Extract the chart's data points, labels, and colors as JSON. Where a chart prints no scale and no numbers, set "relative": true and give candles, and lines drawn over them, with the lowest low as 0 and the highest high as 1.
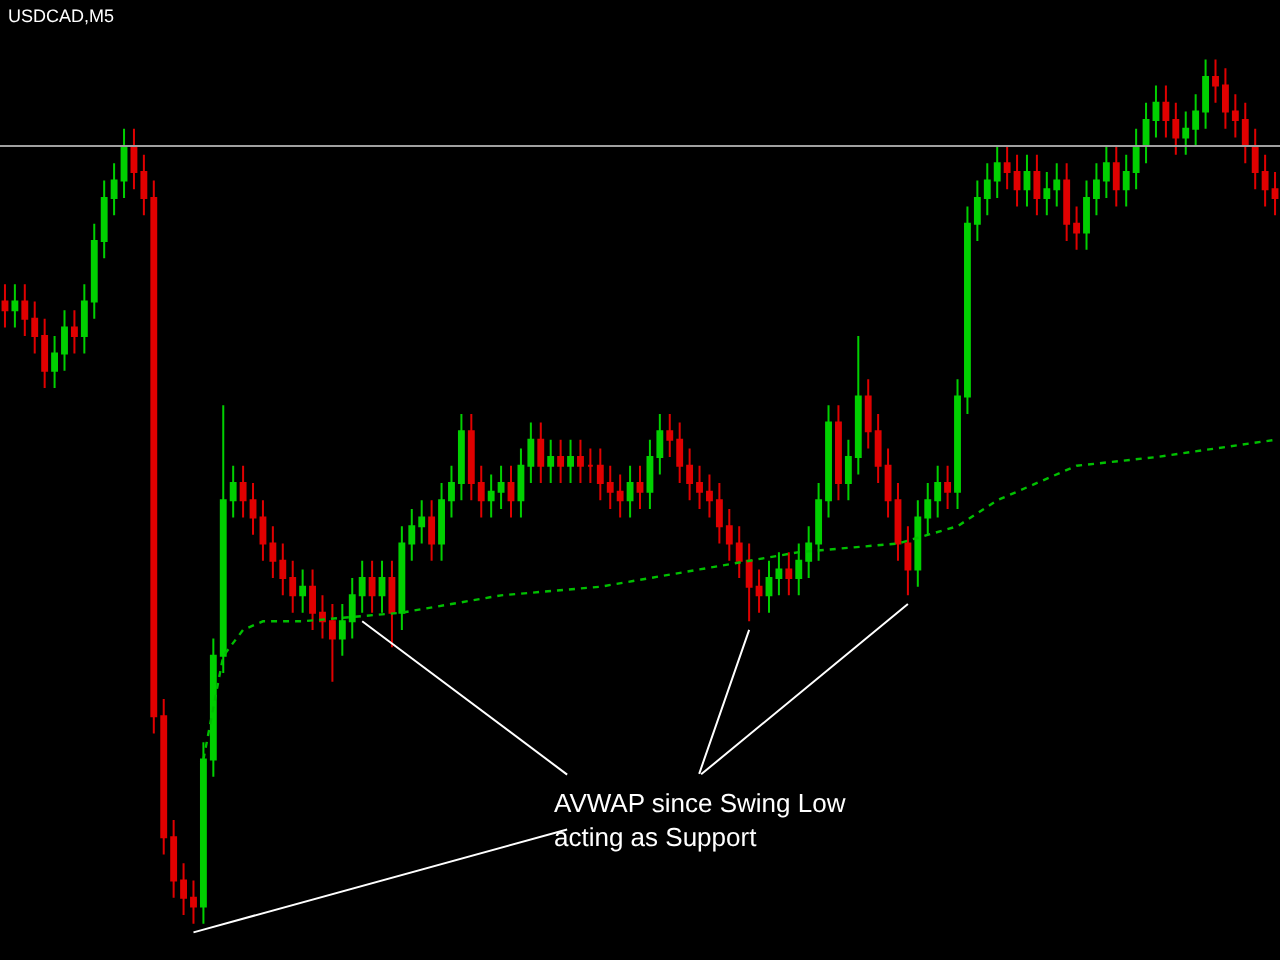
{
  "chart_data": {
    "type": "candlestick",
    "title": "USDCAD,M5",
    "relative": true,
    "categories": [
      null,
      null,
      null,
      null,
      null,
      null,
      null,
      null,
      null,
      null,
      null,
      null,
      null,
      null,
      null,
      null,
      null,
      null,
      null,
      null,
      null,
      null,
      null,
      null,
      null,
      null,
      null,
      null,
      null,
      null,
      null,
      null,
      null,
      null,
      null,
      null,
      null,
      null,
      null,
      null,
      null,
      null,
      null,
      null,
      null,
      null,
      null,
      null,
      null,
      null,
      null,
      null,
      null,
      null,
      null,
      null,
      null,
      null,
      null,
      null,
      null,
      null,
      null,
      null,
      null,
      null,
      null,
      null,
      null,
      null,
      null,
      null,
      null,
      null,
      null,
      null,
      null,
      null,
      null,
      null,
      null,
      null,
      null,
      null,
      null,
      null,
      null,
      null,
      null,
      null,
      null,
      null,
      null,
      null,
      null,
      null,
      null,
      null,
      null,
      null,
      null,
      null,
      null,
      null,
      null,
      null,
      null,
      null,
      null,
      null,
      null,
      null,
      null,
      null,
      null,
      null,
      null,
      null,
      null,
      null,
      null,
      null,
      null,
      null,
      null,
      null,
      null,
      null,
      null
    ],
    "ohlc": [
      [
        0.72,
        0.74,
        0.69,
        0.71
      ],
      [
        0.71,
        0.74,
        0.69,
        0.72
      ],
      [
        0.72,
        0.74,
        0.68,
        0.7
      ],
      [
        0.7,
        0.72,
        0.66,
        0.68
      ],
      [
        0.68,
        0.7,
        0.62,
        0.64
      ],
      [
        0.64,
        0.68,
        0.62,
        0.66
      ],
      [
        0.66,
        0.71,
        0.64,
        0.69
      ],
      [
        0.69,
        0.71,
        0.66,
        0.68
      ],
      [
        0.68,
        0.74,
        0.66,
        0.72
      ],
      [
        0.72,
        0.81,
        0.7,
        0.79
      ],
      [
        0.79,
        0.86,
        0.77,
        0.84
      ],
      [
        0.84,
        0.88,
        0.82,
        0.86
      ],
      [
        0.86,
        0.92,
        0.84,
        0.9
      ],
      [
        0.9,
        0.92,
        0.85,
        0.87
      ],
      [
        0.87,
        0.89,
        0.82,
        0.84
      ],
      [
        0.84,
        0.86,
        0.22,
        0.24
      ],
      [
        0.24,
        0.26,
        0.08,
        0.1
      ],
      [
        0.1,
        0.12,
        0.03,
        0.05
      ],
      [
        0.05,
        0.07,
        0.01,
        0.03
      ],
      [
        0.03,
        0.05,
        0.0,
        0.02
      ],
      [
        0.02,
        0.21,
        0.0,
        0.19
      ],
      [
        0.19,
        0.33,
        0.17,
        0.31
      ],
      [
        0.31,
        0.6,
        0.29,
        0.49
      ],
      [
        0.49,
        0.53,
        0.47,
        0.51
      ],
      [
        0.51,
        0.53,
        0.47,
        0.49
      ],
      [
        0.49,
        0.51,
        0.45,
        0.47
      ],
      [
        0.47,
        0.49,
        0.42,
        0.44
      ],
      [
        0.44,
        0.46,
        0.4,
        0.42
      ],
      [
        0.42,
        0.44,
        0.38,
        0.4
      ],
      [
        0.4,
        0.42,
        0.36,
        0.38
      ],
      [
        0.38,
        0.41,
        0.36,
        0.39
      ],
      [
        0.39,
        0.41,
        0.34,
        0.36
      ],
      [
        0.36,
        0.38,
        0.33,
        0.35
      ],
      [
        0.35,
        0.37,
        0.28,
        0.33
      ],
      [
        0.33,
        0.37,
        0.31,
        0.35
      ],
      [
        0.35,
        0.4,
        0.33,
        0.38
      ],
      [
        0.38,
        0.42,
        0.36,
        0.4
      ],
      [
        0.4,
        0.42,
        0.36,
        0.38
      ],
      [
        0.38,
        0.42,
        0.36,
        0.4
      ],
      [
        0.4,
        0.42,
        0.32,
        0.36
      ],
      [
        0.36,
        0.46,
        0.34,
        0.44
      ],
      [
        0.44,
        0.48,
        0.42,
        0.46
      ],
      [
        0.46,
        0.49,
        0.44,
        0.47
      ],
      [
        0.47,
        0.49,
        0.42,
        0.44
      ],
      [
        0.44,
        0.51,
        0.42,
        0.49
      ],
      [
        0.49,
        0.53,
        0.47,
        0.51
      ],
      [
        0.51,
        0.59,
        0.49,
        0.57
      ],
      [
        0.57,
        0.59,
        0.49,
        0.51
      ],
      [
        0.51,
        0.53,
        0.47,
        0.49
      ],
      [
        0.49,
        0.52,
        0.47,
        0.5
      ],
      [
        0.5,
        0.53,
        0.48,
        0.51
      ],
      [
        0.51,
        0.53,
        0.47,
        0.49
      ],
      [
        0.49,
        0.55,
        0.47,
        0.53
      ],
      [
        0.53,
        0.58,
        0.51,
        0.56
      ],
      [
        0.56,
        0.58,
        0.51,
        0.53
      ],
      [
        0.53,
        0.56,
        0.51,
        0.54
      ],
      [
        0.54,
        0.56,
        0.51,
        0.53
      ],
      [
        0.53,
        0.56,
        0.51,
        0.54
      ],
      [
        0.54,
        0.56,
        0.51,
        0.53
      ],
      [
        0.53,
        0.55,
        0.51,
        0.53
      ],
      [
        0.53,
        0.55,
        0.49,
        0.51
      ],
      [
        0.51,
        0.53,
        0.48,
        0.5
      ],
      [
        0.5,
        0.52,
        0.47,
        0.49
      ],
      [
        0.49,
        0.53,
        0.47,
        0.51
      ],
      [
        0.51,
        0.53,
        0.48,
        0.5
      ],
      [
        0.5,
        0.56,
        0.48,
        0.54
      ],
      [
        0.54,
        0.59,
        0.52,
        0.57
      ],
      [
        0.57,
        0.59,
        0.54,
        0.56
      ],
      [
        0.56,
        0.58,
        0.51,
        0.53
      ],
      [
        0.53,
        0.55,
        0.49,
        0.51
      ],
      [
        0.51,
        0.53,
        0.48,
        0.5
      ],
      [
        0.5,
        0.52,
        0.47,
        0.49
      ],
      [
        0.49,
        0.51,
        0.44,
        0.46
      ],
      [
        0.46,
        0.48,
        0.42,
        0.44
      ],
      [
        0.44,
        0.46,
        0.4,
        0.42
      ],
      [
        0.42,
        0.44,
        0.35,
        0.39
      ],
      [
        0.39,
        0.41,
        0.36,
        0.38
      ],
      [
        0.38,
        0.42,
        0.36,
        0.4
      ],
      [
        0.4,
        0.43,
        0.38,
        0.41
      ],
      [
        0.41,
        0.43,
        0.38,
        0.4
      ],
      [
        0.4,
        0.44,
        0.38,
        0.42
      ],
      [
        0.42,
        0.46,
        0.4,
        0.44
      ],
      [
        0.44,
        0.51,
        0.42,
        0.49
      ],
      [
        0.49,
        0.6,
        0.47,
        0.58
      ],
      [
        0.58,
        0.6,
        0.49,
        0.51
      ],
      [
        0.51,
        0.56,
        0.49,
        0.54
      ],
      [
        0.54,
        0.68,
        0.52,
        0.61
      ],
      [
        0.61,
        0.63,
        0.55,
        0.57
      ],
      [
        0.57,
        0.59,
        0.51,
        0.53
      ],
      [
        0.53,
        0.55,
        0.47,
        0.49
      ],
      [
        0.49,
        0.51,
        0.42,
        0.44
      ],
      [
        0.44,
        0.46,
        0.38,
        0.41
      ],
      [
        0.41,
        0.49,
        0.39,
        0.47
      ],
      [
        0.47,
        0.51,
        0.45,
        0.49
      ],
      [
        0.49,
        0.53,
        0.47,
        0.51
      ],
      [
        0.51,
        0.53,
        0.48,
        0.5
      ],
      [
        0.5,
        0.63,
        0.48,
        0.61
      ],
      [
        0.61,
        0.83,
        0.59,
        0.81
      ],
      [
        0.81,
        0.86,
        0.79,
        0.84
      ],
      [
        0.84,
        0.88,
        0.82,
        0.86
      ],
      [
        0.86,
        0.9,
        0.84,
        0.88
      ],
      [
        0.88,
        0.9,
        0.85,
        0.87
      ],
      [
        0.87,
        0.89,
        0.83,
        0.85
      ],
      [
        0.85,
        0.89,
        0.83,
        0.87
      ],
      [
        0.87,
        0.89,
        0.82,
        0.84
      ],
      [
        0.84,
        0.87,
        0.82,
        0.85
      ],
      [
        0.85,
        0.88,
        0.83,
        0.86
      ],
      [
        0.86,
        0.88,
        0.79,
        0.81
      ],
      [
        0.81,
        0.83,
        0.78,
        0.8
      ],
      [
        0.8,
        0.86,
        0.78,
        0.84
      ],
      [
        0.84,
        0.88,
        0.82,
        0.86
      ],
      [
        0.86,
        0.9,
        0.84,
        0.88
      ],
      [
        0.88,
        0.9,
        0.83,
        0.85
      ],
      [
        0.85,
        0.89,
        0.83,
        0.87
      ],
      [
        0.87,
        0.92,
        0.85,
        0.9
      ],
      [
        0.9,
        0.95,
        0.88,
        0.93
      ],
      [
        0.93,
        0.97,
        0.91,
        0.95
      ],
      [
        0.95,
        0.97,
        0.91,
        0.93
      ],
      [
        0.93,
        0.95,
        0.89,
        0.91
      ],
      [
        0.91,
        0.94,
        0.89,
        0.92
      ],
      [
        0.92,
        0.96,
        0.9,
        0.94
      ],
      [
        0.94,
        1.0,
        0.92,
        0.98
      ],
      [
        0.98,
        1.0,
        0.95,
        0.97
      ],
      [
        0.97,
        0.99,
        0.92,
        0.94
      ],
      [
        0.94,
        0.96,
        0.91,
        0.93
      ],
      [
        0.93,
        0.95,
        0.88,
        0.9
      ],
      [
        0.9,
        0.92,
        0.85,
        0.87
      ],
      [
        0.87,
        0.89,
        0.83,
        0.85
      ],
      [
        0.85,
        0.87,
        0.82,
        0.84
      ]
    ],
    "series": [
      {
        "type": "line",
        "color": "#00c000",
        "line_style": "dotted",
        "values": [
          null,
          null,
          null,
          null,
          null,
          null,
          null,
          null,
          null,
          null,
          null,
          null,
          null,
          null,
          null,
          null,
          null,
          null,
          null,
          null,
          0.19,
          null,
          0.31,
          null,
          0.34,
          null,
          0.35,
          null,
          null,
          null,
          0.35,
          null,
          null,
          null,
          null,
          null,
          null,
          null,
          null,
          null,
          0.36,
          null,
          null,
          null,
          null,
          null,
          null,
          null,
          null,
          null,
          0.38,
          null,
          null,
          null,
          null,
          null,
          null,
          null,
          null,
          null,
          0.39,
          null,
          null,
          null,
          null,
          null,
          null,
          null,
          null,
          null,
          0.41,
          null,
          null,
          null,
          null,
          null,
          null,
          null,
          null,
          null,
          0.43,
          null,
          null,
          null,
          null,
          null,
          null,
          null,
          null,
          null,
          0.44,
          null,
          null,
          null,
          null,
          null,
          0.46,
          null,
          null,
          null,
          0.49,
          null,
          null,
          null,
          null,
          null,
          null,
          null,
          0.53,
          null,
          null,
          null,
          null,
          null,
          null,
          null,
          0.54,
          null,
          null,
          null,
          null,
          null,
          null,
          null,
          null,
          null,
          null,
          null,
          0.56
        ]
      }
    ],
    "ref_lines": [
      {
        "axis": "y",
        "value": 0.9,
        "color": "#a0a0a0"
      }
    ],
    "annotations": [
      "AVWAP since Swing Low\nacting as Support"
    ],
    "tick_labels": false
  }
}
